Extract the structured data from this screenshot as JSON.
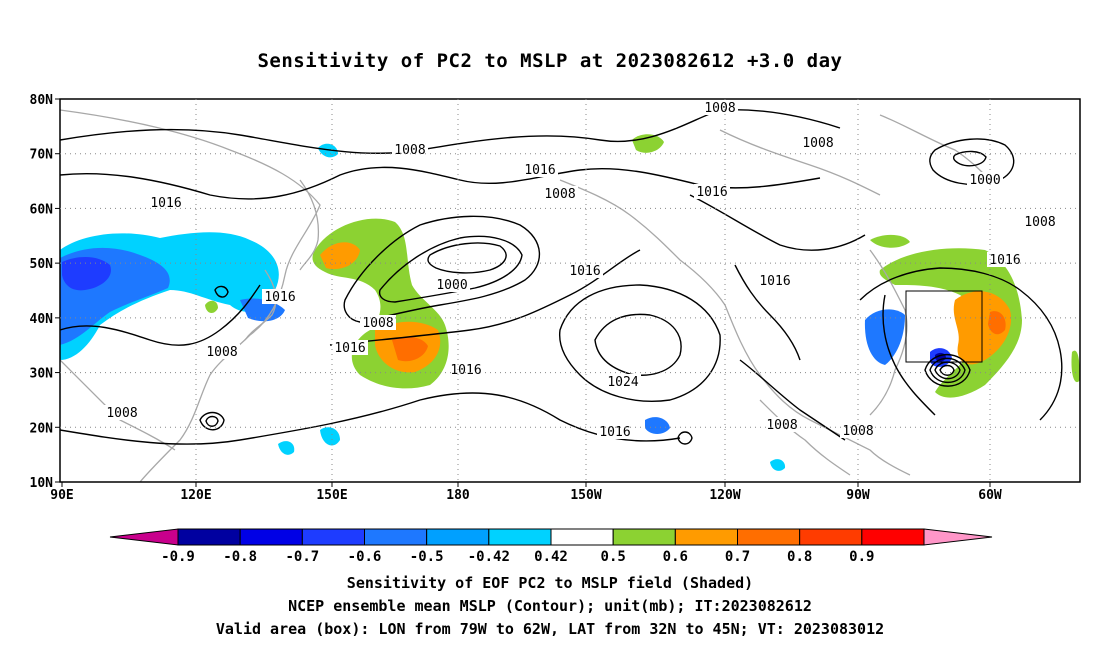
{
  "title": "Sensitivity of PC2 to MSLP at 2023082612 +3.0 day",
  "lat_ticks": [
    "80N",
    "70N",
    "60N",
    "50N",
    "40N",
    "30N",
    "20N",
    "10N"
  ],
  "lon_ticks": [
    "90E",
    "120E",
    "150E",
    "180",
    "150W",
    "120W",
    "90W",
    "60W"
  ],
  "contour_labels": [
    "1008",
    "1008",
    "1008",
    "1008",
    "1016",
    "1016",
    "1016",
    "1016",
    "1016",
    "1000",
    "1000",
    "1008",
    "1008",
    "1016",
    "1016",
    "1016",
    "1016",
    "1024",
    "1016",
    "1008",
    "1008",
    "1008",
    "1008"
  ],
  "valid_box": {
    "lon_range": "79W to 62W",
    "lat_range": "32N to 45N"
  },
  "colorbar": {
    "labels": [
      "-0.9",
      "-0.8",
      "-0.7",
      "-0.6",
      "-0.5",
      "-0.42",
      "0.42",
      "0.5",
      "0.6",
      "0.7",
      "0.8",
      "0.9"
    ],
    "colors": [
      "#c8008c",
      "#0000a0",
      "#0000e6",
      "#1e3cff",
      "#1e78ff",
      "#00a0ff",
      "#00d2ff",
      "#ffffff",
      "#8cd232",
      "#ff9b00",
      "#ff6e00",
      "#ff3c00",
      "#ff0000",
      "#ff96c8"
    ]
  },
  "captions": [
    "Sensitivity of EOF PC2 to MSLP field (Shaded)",
    "NCEP ensemble mean MSLP (Contour); unit(mb); IT:2023082612",
    "Valid area (box): LON from 79W to 62W, LAT from 32N to 45N; VT: 2023083012"
  ]
}
